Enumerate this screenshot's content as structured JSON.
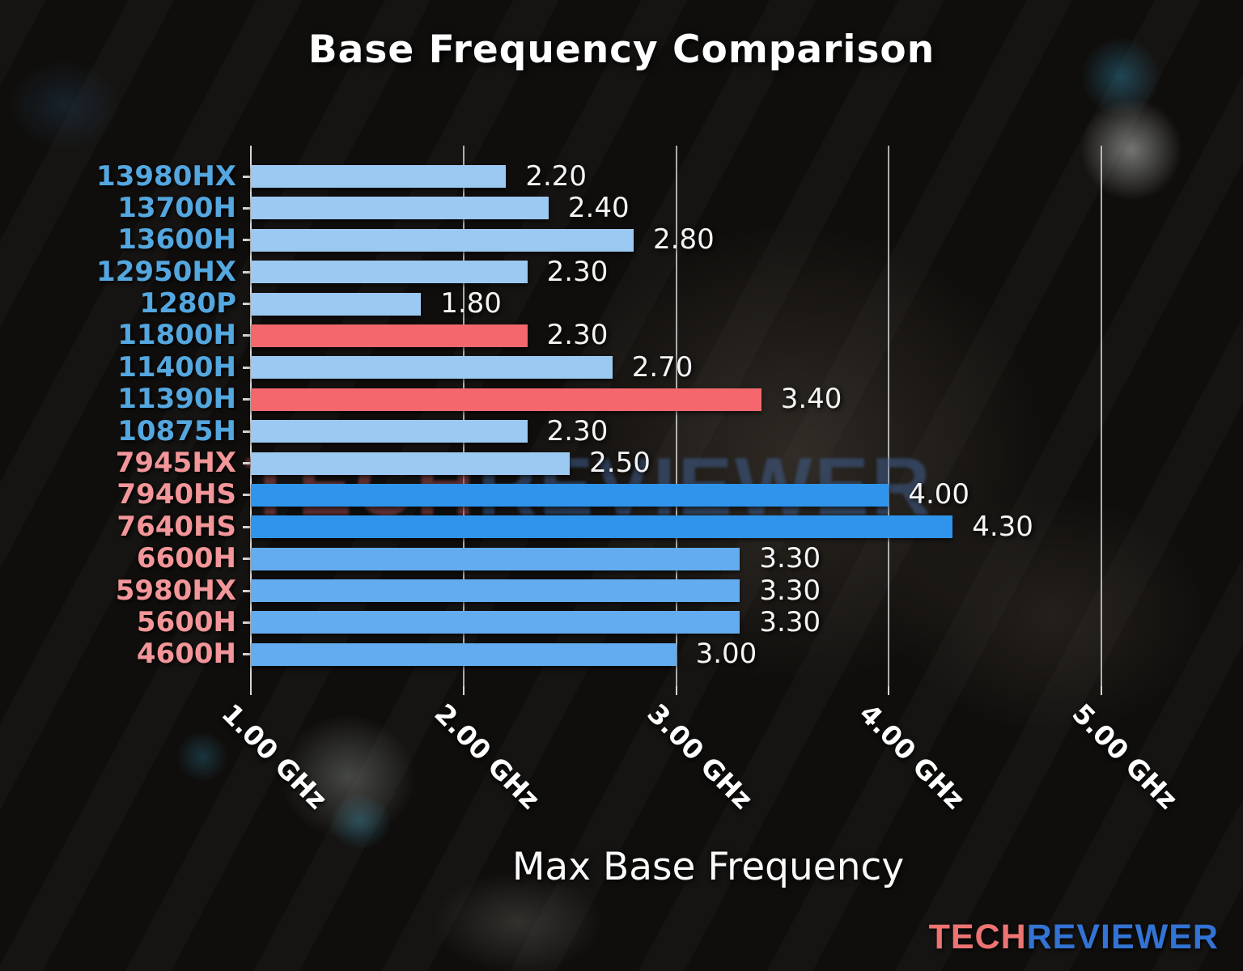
{
  "title": "Base Frequency Comparison",
  "xlabel": "Max Base Frequency",
  "watermark": {
    "part1": "TECH",
    "part2": "REVIEWER"
  },
  "logo": {
    "part1": "TECH",
    "part2": "REVIEWER"
  },
  "colors": {
    "title_text": "#ffffff",
    "value_text": "#f4f4f4",
    "grid": "#e1e1e1",
    "intel_label": "#54a7df",
    "amd_label": "#f29699",
    "bar_light_blue": "#9cc9f2",
    "bar_medium_blue": "#63acef",
    "bar_strong_blue": "#2f95ec",
    "bar_red": "#f4686d",
    "watermark_tech": "rgba(158,73,78,0.55)",
    "watermark_reviewer": "rgba(66,100,152,0.50)",
    "logo_tech": "#ed7473",
    "logo_reviewer": "#3273d4"
  },
  "chart_data": {
    "type": "bar",
    "orientation": "horizontal",
    "title": "Base Frequency Comparison",
    "xlabel": "Max Base Frequency",
    "ylabel": "",
    "unit": "GHz",
    "xlim": [
      1.0,
      5.3
    ],
    "grid": true,
    "legend": false,
    "x_ticks": [
      {
        "value": 1.0,
        "label": "1.00 GHz"
      },
      {
        "value": 2.0,
        "label": "2.00 GHz"
      },
      {
        "value": 3.0,
        "label": "3.00 GHz"
      },
      {
        "value": 4.0,
        "label": "4.00 GHz"
      },
      {
        "value": 5.0,
        "label": "5.00 GHz"
      }
    ],
    "bars": [
      {
        "label": "13980HX",
        "value": 2.2,
        "value_label": "2.20",
        "bar_color_key": "bar_light_blue",
        "label_color_key": "intel_label"
      },
      {
        "label": "13700H",
        "value": 2.4,
        "value_label": "2.40",
        "bar_color_key": "bar_light_blue",
        "label_color_key": "intel_label"
      },
      {
        "label": "13600H",
        "value": 2.8,
        "value_label": "2.80",
        "bar_color_key": "bar_light_blue",
        "label_color_key": "intel_label"
      },
      {
        "label": "12950HX",
        "value": 2.3,
        "value_label": "2.30",
        "bar_color_key": "bar_light_blue",
        "label_color_key": "intel_label"
      },
      {
        "label": "1280P",
        "value": 1.8,
        "value_label": "1.80",
        "bar_color_key": "bar_light_blue",
        "label_color_key": "intel_label"
      },
      {
        "label": "11800H",
        "value": 2.3,
        "value_label": "2.30",
        "bar_color_key": "bar_red",
        "label_color_key": "intel_label"
      },
      {
        "label": "11400H",
        "value": 2.7,
        "value_label": "2.70",
        "bar_color_key": "bar_light_blue",
        "label_color_key": "intel_label"
      },
      {
        "label": "11390H",
        "value": 3.4,
        "value_label": "3.40",
        "bar_color_key": "bar_red",
        "label_color_key": "intel_label"
      },
      {
        "label": "10875H",
        "value": 2.3,
        "value_label": "2.30",
        "bar_color_key": "bar_light_blue",
        "label_color_key": "intel_label"
      },
      {
        "label": "7945HX",
        "value": 2.5,
        "value_label": "2.50",
        "bar_color_key": "bar_light_blue",
        "label_color_key": "amd_label"
      },
      {
        "label": "7940HS",
        "value": 4.0,
        "value_label": "4.00",
        "bar_color_key": "bar_strong_blue",
        "label_color_key": "amd_label"
      },
      {
        "label": "7640HS",
        "value": 4.3,
        "value_label": "4.30",
        "bar_color_key": "bar_strong_blue",
        "label_color_key": "amd_label"
      },
      {
        "label": "6600H",
        "value": 3.3,
        "value_label": "3.30",
        "bar_color_key": "bar_medium_blue",
        "label_color_key": "amd_label"
      },
      {
        "label": "5980HX",
        "value": 3.3,
        "value_label": "3.30",
        "bar_color_key": "bar_medium_blue",
        "label_color_key": "amd_label"
      },
      {
        "label": "5600H",
        "value": 3.3,
        "value_label": "3.30",
        "bar_color_key": "bar_medium_blue",
        "label_color_key": "amd_label"
      },
      {
        "label": "4600H",
        "value": 3.0,
        "value_label": "3.00",
        "bar_color_key": "bar_medium_blue",
        "label_color_key": "amd_label"
      }
    ]
  }
}
